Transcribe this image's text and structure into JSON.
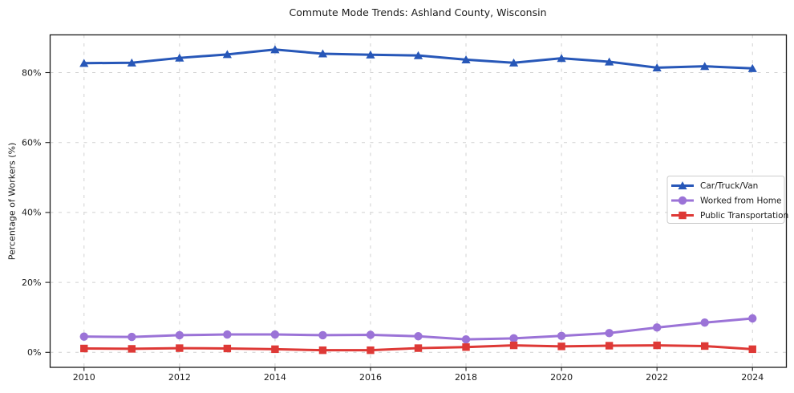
{
  "chart_data": {
    "type": "line",
    "title": "Commute Mode Trends: Ashland County, Wisconsin",
    "xlabel": "",
    "ylabel": "Percentage of Workers (%)",
    "x": [
      2010,
      2011,
      2012,
      2013,
      2014,
      2015,
      2016,
      2017,
      2018,
      2019,
      2020,
      2021,
      2022,
      2023,
      2024
    ],
    "series": [
      {
        "name": "Car/Truck/Van",
        "color": "#2757b8",
        "marker": "triangle",
        "values": [
          82.7,
          82.8,
          84.2,
          85.2,
          86.6,
          85.4,
          85.1,
          84.9,
          83.7,
          82.8,
          84.1,
          83.1,
          81.4,
          81.8,
          81.2
        ]
      },
      {
        "name": "Worked from Home",
        "color": "#9b73d7",
        "marker": "circle",
        "values": [
          4.5,
          4.4,
          4.9,
          5.1,
          5.1,
          4.9,
          5.0,
          4.6,
          3.7,
          4.0,
          4.7,
          5.5,
          7.1,
          8.5,
          9.7
        ]
      },
      {
        "name": "Public Transportation",
        "color": "#de3936",
        "marker": "square",
        "values": [
          1.1,
          1.0,
          1.2,
          1.1,
          0.9,
          0.6,
          0.6,
          1.2,
          1.5,
          2.0,
          1.7,
          1.9,
          2.0,
          1.8,
          0.9
        ]
      }
    ],
    "xticks": [
      2010,
      2012,
      2014,
      2016,
      2018,
      2020,
      2022,
      2024
    ],
    "xtick_labels": [
      "2010",
      "2012",
      "2014",
      "2016",
      "2018",
      "2020",
      "2022",
      "2024"
    ],
    "yticks": [
      0,
      20,
      40,
      60,
      80
    ],
    "ytick_labels": [
      "0%",
      "20%",
      "40%",
      "60%",
      "80%"
    ],
    "xlim": [
      2009.29,
      2024.71
    ],
    "ylim": [
      -4.29,
      90.78
    ],
    "grid": true,
    "grid_color": "#c9c9c9",
    "axis_color": "#1a1a1a",
    "legend_position": "center right",
    "legend_border_color": "#cccccc"
  }
}
